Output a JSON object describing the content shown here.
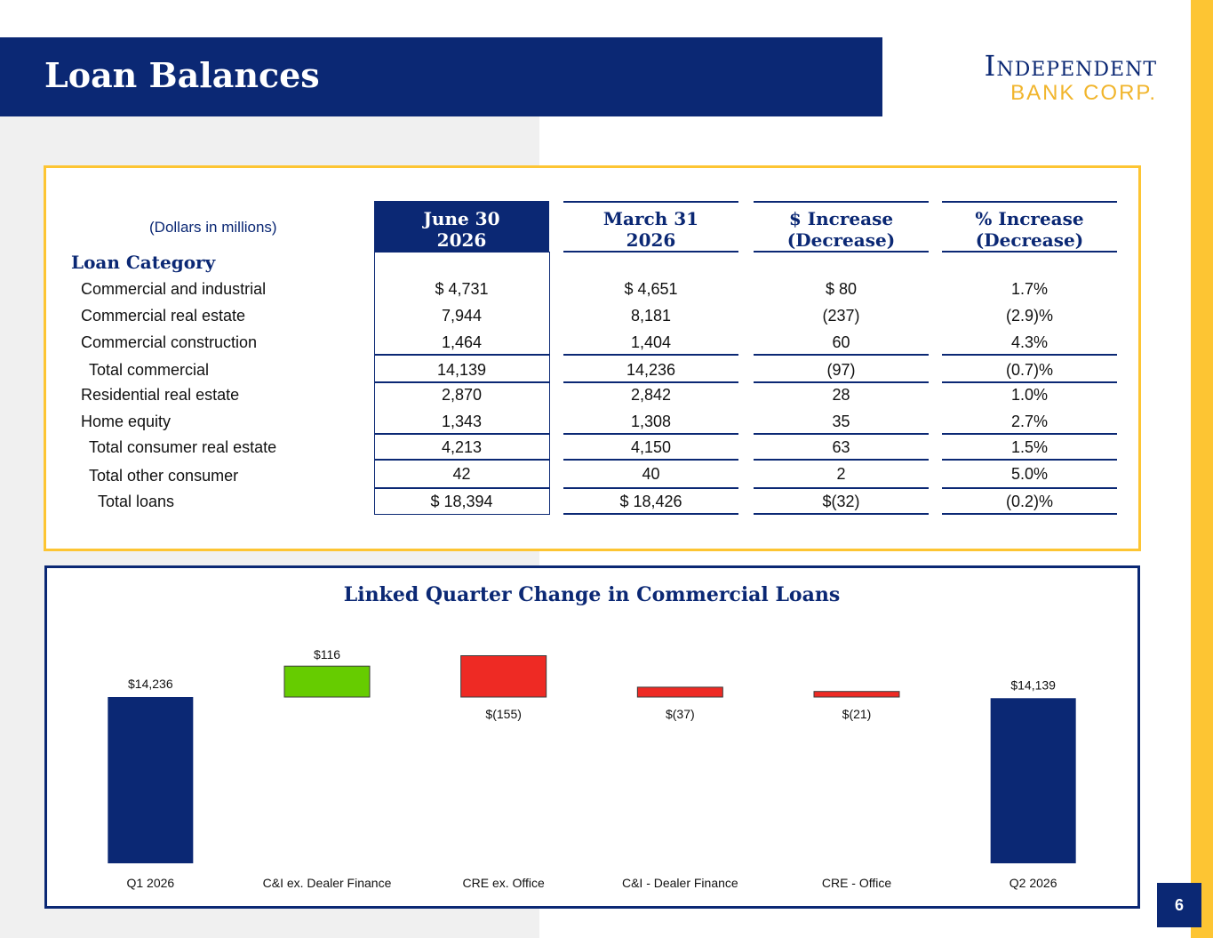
{
  "header": {
    "title": "Loan Balances",
    "logo_top": "Independent",
    "logo_bottom": "BANK CORP."
  },
  "table": {
    "units": "(Dollars in millions)",
    "category_heading": "Loan Category",
    "columns": [
      {
        "line1": "June 30",
        "line2": "2026"
      },
      {
        "line1": "March 31",
        "line2": "2026"
      },
      {
        "line1": "$ Increase",
        "line2": "(Decrease)"
      },
      {
        "line1": "% Increase",
        "line2": "(Decrease)"
      }
    ],
    "rows": [
      {
        "label": "Commercial and industrial",
        "cells": [
          "$ 4,731",
          "$ 4,651",
          "$ 80",
          "1.7%"
        ]
      },
      {
        "label": "Commercial real estate",
        "cells": [
          "7,944",
          "8,181",
          "(237)",
          "(2.9)%"
        ]
      },
      {
        "label": "Commercial construction",
        "cells": [
          "1,464",
          "1,404",
          "60",
          "4.3%"
        ]
      },
      {
        "label": "Total commercial",
        "cells": [
          "14,139",
          "14,236",
          "(97)",
          "(0.7)%"
        ]
      },
      {
        "label": "Residential real estate",
        "cells": [
          "2,870",
          "2,842",
          "28",
          "1.0%"
        ]
      },
      {
        "label": "Home equity",
        "cells": [
          "1,343",
          "1,308",
          "35",
          "2.7%"
        ]
      },
      {
        "label": "Total consumer real estate",
        "cells": [
          "4,213",
          "4,150",
          "63",
          "1.5%"
        ]
      },
      {
        "label": "Total other consumer",
        "cells": [
          "42",
          "40",
          "2",
          "5.0%"
        ]
      },
      {
        "label": "Total loans",
        "cells": [
          "$ 18,394",
          "$ 18,426",
          "$(32)",
          "(0.2)%"
        ]
      }
    ]
  },
  "chart_data": {
    "type": "bar",
    "title": "Linked Quarter Change in Commercial Loans",
    "categories": [
      "Q1 2026",
      "C&I ex. Dealer Finance",
      "CRE ex. Office",
      "C&I - Dealer Finance",
      "CRE - Office",
      "Q2 2026"
    ],
    "values": [
      14236,
      116,
      -155,
      -37,
      -21,
      14139
    ],
    "data_labels": [
      "$14,236",
      "$116",
      "$(155)",
      "$(37)",
      "$(21)",
      "$14,139"
    ],
    "colors": {
      "total": "#0b2874",
      "increase": "#66cc00",
      "decrease": "#ee2a24"
    }
  },
  "page_number": "6"
}
